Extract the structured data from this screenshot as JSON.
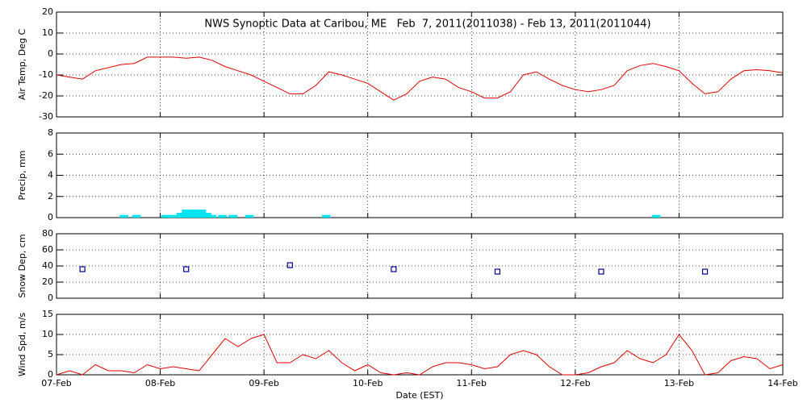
{
  "xaxis": {
    "label": "Date (EST)",
    "xlim": [
      0,
      7
    ],
    "xticks": [
      {
        "value": 0,
        "label": "07-Feb"
      },
      {
        "value": 1,
        "label": "08-Feb"
      },
      {
        "value": 2,
        "label": "09-Feb"
      },
      {
        "value": 3,
        "label": "10-Feb"
      },
      {
        "value": 4,
        "label": "11-Feb"
      },
      {
        "value": 5,
        "label": "12-Feb"
      },
      {
        "value": 6,
        "label": "13-Feb"
      },
      {
        "value": 7,
        "label": "14-Feb"
      }
    ]
  },
  "chart_data": [
    {
      "type": "line",
      "title": "NWS Synoptic Data at Caribou, ME   Feb  7, 2011(2011038) - Feb 13, 2011(2011044)",
      "ylabel": "Air Temp, Deg C",
      "ylim": [
        -30,
        20
      ],
      "yticks": [
        -30,
        -20,
        -10,
        0,
        10,
        20
      ],
      "grid": true,
      "x": [
        0,
        0.125,
        0.25,
        0.375,
        0.5,
        0.625,
        0.75,
        0.875,
        1,
        1.125,
        1.25,
        1.375,
        1.5,
        1.625,
        1.75,
        1.875,
        2,
        2.125,
        2.25,
        2.375,
        2.5,
        2.625,
        2.75,
        2.875,
        3,
        3.125,
        3.25,
        3.375,
        3.5,
        3.625,
        3.75,
        3.875,
        4,
        4.125,
        4.25,
        4.375,
        4.5,
        4.625,
        4.75,
        4.875,
        5,
        5.125,
        5.25,
        5.375,
        5.5,
        5.625,
        5.75,
        5.875,
        6,
        6.125,
        6.25,
        6.375,
        6.5,
        6.625,
        6.75,
        6.875,
        7
      ],
      "series": [
        {
          "color": "#e00000",
          "values": [
            -10,
            -11,
            -12,
            -8,
            -6.5,
            -5,
            -4.5,
            -1.5,
            -1.5,
            -1.5,
            -2,
            -1.5,
            -3,
            -6,
            -8,
            -10,
            -13,
            -16,
            -19,
            -19,
            -15,
            -8.5,
            -10,
            -12,
            -14,
            -18,
            -22,
            -19,
            -13,
            -11,
            -12,
            -16,
            -18,
            -21,
            -21,
            -18,
            -10,
            -8.5,
            -12,
            -15,
            -17,
            -18,
            -17,
            -15,
            -8,
            -5.5,
            -4.5,
            -6,
            -8,
            -14,
            -19,
            -18,
            -12,
            -8,
            -7.5,
            -8,
            -9
          ]
        }
      ]
    },
    {
      "type": "bar",
      "ylabel": "Precip, mm",
      "ylim": [
        0,
        8
      ],
      "yticks": [
        0,
        2,
        4,
        6,
        8
      ],
      "grid": true,
      "x": [
        0.65,
        0.77,
        1.05,
        1.12,
        1.2,
        1.25,
        1.3,
        1.35,
        1.4,
        1.45,
        1.5,
        1.6,
        1.7,
        1.86,
        2.6,
        5.78
      ],
      "series": [
        {
          "color": "#00e5ee",
          "values": [
            0.1,
            0.1,
            0.1,
            0.1,
            0.3,
            0.6,
            0.6,
            0.6,
            0.6,
            0.3,
            0.1,
            0.1,
            0.1,
            0.1,
            0.1,
            0.1
          ]
        }
      ]
    },
    {
      "type": "scatter",
      "ylabel": "Snow Dep, cm",
      "ylim": [
        0,
        80
      ],
      "yticks": [
        0,
        20,
        40,
        60,
        80
      ],
      "grid": true,
      "x": [
        0.25,
        1.25,
        2.25,
        3.25,
        4.25,
        5.25,
        6.25
      ],
      "series": [
        {
          "color": "#00008b",
          "values": [
            36,
            36,
            41,
            36,
            33,
            33,
            33
          ]
        }
      ]
    },
    {
      "type": "line",
      "ylabel": "Wind Spd, m/s",
      "ylim": [
        0,
        15
      ],
      "yticks": [
        0,
        5,
        10,
        15
      ],
      "grid": true,
      "x": [
        0,
        0.125,
        0.25,
        0.375,
        0.5,
        0.625,
        0.75,
        0.875,
        1,
        1.125,
        1.25,
        1.375,
        1.5,
        1.625,
        1.75,
        1.875,
        2,
        2.125,
        2.25,
        2.375,
        2.5,
        2.625,
        2.75,
        2.875,
        3,
        3.125,
        3.25,
        3.375,
        3.5,
        3.625,
        3.75,
        3.875,
        4,
        4.125,
        4.25,
        4.375,
        4.5,
        4.625,
        4.75,
        4.875,
        5,
        5.125,
        5.25,
        5.375,
        5.5,
        5.625,
        5.75,
        5.875,
        6,
        6.125,
        6.25,
        6.375,
        6.5,
        6.625,
        6.75,
        6.875,
        7
      ],
      "series": [
        {
          "color": "#e00000",
          "values": [
            0,
            1,
            0,
            2.5,
            1,
            1,
            0.5,
            2.5,
            1.5,
            2,
            1.5,
            1,
            5,
            9,
            7,
            9,
            10,
            3,
            3,
            5,
            4,
            6,
            3,
            1,
            2.5,
            0.5,
            0,
            0.5,
            0,
            2,
            3,
            3,
            2.5,
            1.5,
            2,
            5,
            6,
            5,
            2,
            0,
            0,
            0.5,
            2,
            3,
            6,
            4,
            3,
            5,
            10,
            6,
            0,
            0.5,
            3.5,
            4.5,
            4,
            1.5,
            2.5
          ]
        }
      ]
    }
  ]
}
